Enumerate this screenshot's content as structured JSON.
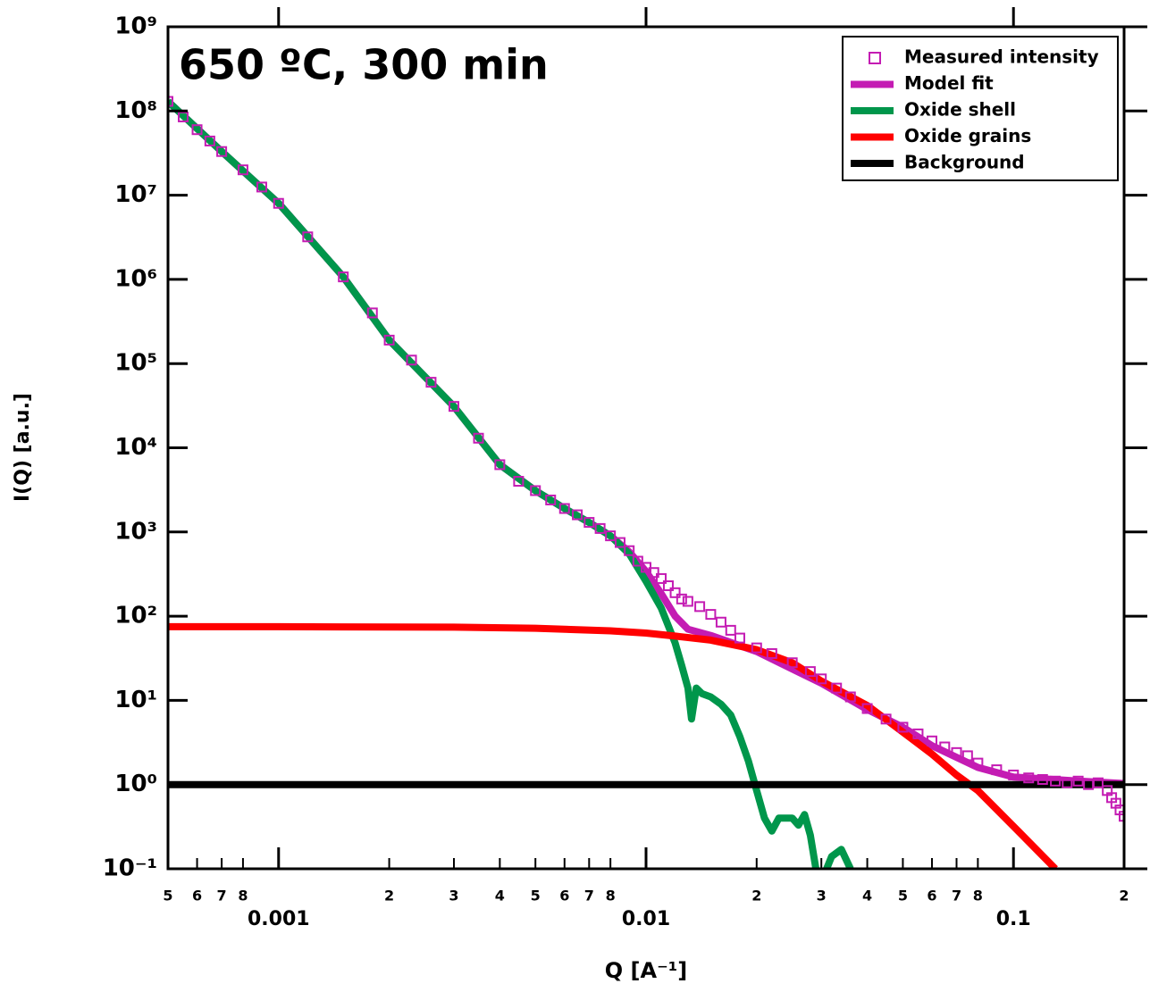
{
  "chart_data": {
    "type": "line",
    "annotation": "650 ºC, 300 min",
    "xlabel": "Q [A⁻¹]",
    "ylabel": "I(Q) [a.u.]",
    "xscale": "log",
    "yscale": "log",
    "xlim": [
      0.0005,
      0.2
    ],
    "ylim": [
      0.1,
      1000000000
    ],
    "xticks": [
      {
        "value": 0.0005,
        "label": "5"
      },
      {
        "value": 0.0006,
        "label": "6"
      },
      {
        "value": 0.0007,
        "label": "7"
      },
      {
        "value": 0.0008,
        "label": "8"
      },
      0.001,
      {
        "value": 0.002,
        "label": "2"
      },
      {
        "value": 0.003,
        "label": "3"
      },
      {
        "value": 0.004,
        "label": "4"
      },
      {
        "value": 0.005,
        "label": "5"
      },
      {
        "value": 0.006,
        "label": "6"
      },
      {
        "value": 0.007,
        "label": "7"
      },
      {
        "value": 0.008,
        "label": "8"
      },
      0.01,
      {
        "value": 0.02,
        "label": "2"
      },
      {
        "value": 0.03,
        "label": "3"
      },
      {
        "value": 0.04,
        "label": "4"
      },
      {
        "value": 0.05,
        "label": "5"
      },
      {
        "value": 0.06,
        "label": "6"
      },
      {
        "value": 0.07,
        "label": "7"
      },
      {
        "value": 0.08,
        "label": "8"
      },
      0.1,
      {
        "value": 0.2,
        "label": "2"
      }
    ],
    "yticks": [
      {
        "value": 0.1,
        "label": "10⁻¹"
      },
      {
        "value": 1,
        "label": "10⁰"
      },
      {
        "value": 10,
        "label": "10¹"
      },
      {
        "value": 100,
        "label": "10²"
      },
      {
        "value": 1000,
        "label": "10³"
      },
      {
        "value": 10000,
        "label": "10⁴"
      },
      {
        "value": 100000,
        "label": "10⁵"
      },
      {
        "value": 1000000,
        "label": "10⁶"
      },
      {
        "value": 10000000,
        "label": "10⁷"
      },
      {
        "value": 100000000,
        "label": "10⁸"
      },
      {
        "value": 1000000000,
        "label": "10⁹"
      }
    ],
    "legend": "upper right",
    "series": [
      {
        "name": "Measured intensity",
        "kind": "scatter",
        "color": "#c41cb3",
        "x": [
          0.0005,
          0.00055,
          0.0006,
          0.00065,
          0.0007,
          0.0008,
          0.0009,
          0.001,
          0.0012,
          0.0015,
          0.0018,
          0.002,
          0.0023,
          0.0026,
          0.003,
          0.0035,
          0.004,
          0.0045,
          0.005,
          0.0055,
          0.006,
          0.0065,
          0.007,
          0.0075,
          0.008,
          0.0085,
          0.009,
          0.0095,
          0.01,
          0.0105,
          0.011,
          0.0115,
          0.012,
          0.0125,
          0.013,
          0.014,
          0.015,
          0.016,
          0.017,
          0.018,
          0.02,
          0.022,
          0.025,
          0.028,
          0.03,
          0.033,
          0.036,
          0.04,
          0.045,
          0.05,
          0.055,
          0.06,
          0.065,
          0.07,
          0.075,
          0.08,
          0.09,
          0.1,
          0.11,
          0.12,
          0.13,
          0.14,
          0.15,
          0.16,
          0.17,
          0.18,
          0.185,
          0.19,
          0.195,
          0.2
        ],
        "values": [
          130000000,
          85000000,
          60000000,
          44000000,
          33000000,
          20000000,
          12500000,
          8000000,
          3200000,
          1070000,
          400000,
          190000,
          110000,
          60000,
          31000,
          13000,
          6300,
          4000,
          3100,
          2400,
          1900,
          1600,
          1300,
          1100,
          900,
          750,
          600,
          450,
          380,
          330,
          280,
          230,
          190,
          160,
          150,
          130,
          105,
          85,
          68,
          55,
          42,
          36,
          28,
          22,
          18,
          14,
          11,
          8,
          6,
          4.8,
          4,
          3.3,
          2.8,
          2.4,
          2.2,
          1.8,
          1.5,
          1.3,
          1.2,
          1.15,
          1.1,
          1.05,
          1.1,
          1.0,
          1.05,
          0.85,
          0.7,
          0.6,
          0.5,
          0.42
        ]
      },
      {
        "name": "Model fit",
        "kind": "line",
        "color": "#c41cb3",
        "x": [
          0.0005,
          0.0007,
          0.001,
          0.0015,
          0.002,
          0.003,
          0.004,
          0.005,
          0.006,
          0.007,
          0.008,
          0.009,
          0.01,
          0.011,
          0.012,
          0.013,
          0.015,
          0.02,
          0.03,
          0.04,
          0.05,
          0.06,
          0.08,
          0.1,
          0.15,
          0.2
        ],
        "values": [
          130000000,
          33000000,
          8000000,
          1070000,
          190000,
          31000,
          6300,
          3100,
          1900,
          1300,
          900,
          580,
          340,
          185,
          100,
          70,
          59,
          38,
          16,
          7.8,
          4.8,
          2.9,
          1.6,
          1.23,
          1.1,
          1.03
        ]
      },
      {
        "name": "Oxide shell",
        "kind": "line",
        "color": "#00964b",
        "x": [
          0.0005,
          0.0007,
          0.001,
          0.0015,
          0.002,
          0.003,
          0.004,
          0.005,
          0.006,
          0.007,
          0.008,
          0.009,
          0.01,
          0.011,
          0.012,
          0.0125,
          0.013,
          0.0133,
          0.0137,
          0.0142,
          0.015,
          0.016,
          0.017,
          0.018,
          0.019,
          0.02,
          0.021,
          0.022,
          0.023,
          0.025,
          0.026,
          0.027,
          0.028,
          0.029,
          0.03,
          0.031,
          0.032,
          0.034,
          0.036
        ],
        "values": [
          130000000,
          33000000,
          8000000,
          1070000,
          190000,
          31000,
          6300,
          3100,
          1900,
          1300,
          900,
          550,
          260,
          125,
          48,
          26,
          14,
          6,
          14,
          12,
          11,
          9,
          6.7,
          3.7,
          1.9,
          0.85,
          0.4,
          0.28,
          0.4,
          0.4,
          0.33,
          0.44,
          0.25,
          0.1,
          null,
          0.1,
          0.14,
          0.17,
          0.1
        ]
      },
      {
        "name": "Oxide grains",
        "kind": "line",
        "color": "#ff0000",
        "x": [
          0.0005,
          0.001,
          0.003,
          0.005,
          0.008,
          0.01,
          0.012,
          0.015,
          0.02,
          0.025,
          0.03,
          0.04,
          0.05,
          0.06,
          0.07,
          0.08,
          0.1,
          0.13
        ],
        "values": [
          75,
          75,
          74,
          72,
          67,
          63,
          58,
          52,
          40,
          28,
          17,
          8.7,
          4.2,
          2.3,
          1.3,
          0.85,
          0.32,
          0.1
        ]
      },
      {
        "name": "Background",
        "kind": "line",
        "color": "#000000",
        "x": [
          0.0005,
          0.2
        ],
        "values": [
          1,
          1
        ]
      }
    ]
  }
}
